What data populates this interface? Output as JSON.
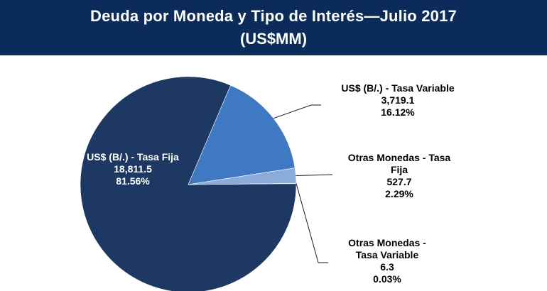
{
  "header": {
    "title": "Deuda por Moneda y  Tipo de Interés—Julio 2017",
    "subtitle": "(US$MM)"
  },
  "colors": {
    "banner": "#0b2b5a",
    "slice_fija": "#1c3863",
    "slice_variable": "#3f78c3",
    "slice_otras_fija": "#8bacd9",
    "slice_otras_variable": "#c6d5ea",
    "leader": "#1a1a1a"
  },
  "chart_data": {
    "type": "pie",
    "title": "Deuda por Moneda y  Tipo de Interés—Julio 2017",
    "subtitle": "(US$MM)",
    "slices": [
      {
        "label": "US$ (B/.) - Tasa Fija",
        "value": 18811.5,
        "value_label": "18,811.5",
        "percent": 81.56,
        "percent_label": "81.56%"
      },
      {
        "label": "US$ (B/.) - Tasa Variable",
        "value": 3719.1,
        "value_label": "3,719.1",
        "percent": 16.12,
        "percent_label": "16.12%"
      },
      {
        "label": "Otras Monedas - Tasa Fija",
        "value": 527.7,
        "value_label": "527.7",
        "percent": 2.29,
        "percent_label": "2.29%"
      },
      {
        "label": "Otras Monedas - Tasa Variable",
        "value": 6.3,
        "value_label": "6.3",
        "percent": 0.03,
        "percent_label": "0.03%"
      }
    ]
  },
  "labels": {
    "fija": {
      "line1": "US$ (B/.) - Tasa Fija",
      "value": "18,811.5",
      "percent": "81.56%"
    },
    "variable": {
      "line1": "US$ (B/.) - Tasa Variable",
      "value": "3,719.1",
      "percent": "16.12%"
    },
    "otras_fija": {
      "line1": "Otras Monedas - Tasa",
      "line2": "Fija",
      "value": "527.7",
      "percent": "2.29%"
    },
    "otras_variable": {
      "line1": "Otras Monedas -",
      "line2": "Tasa Variable",
      "value": "6.3",
      "percent": "0.03%"
    }
  }
}
